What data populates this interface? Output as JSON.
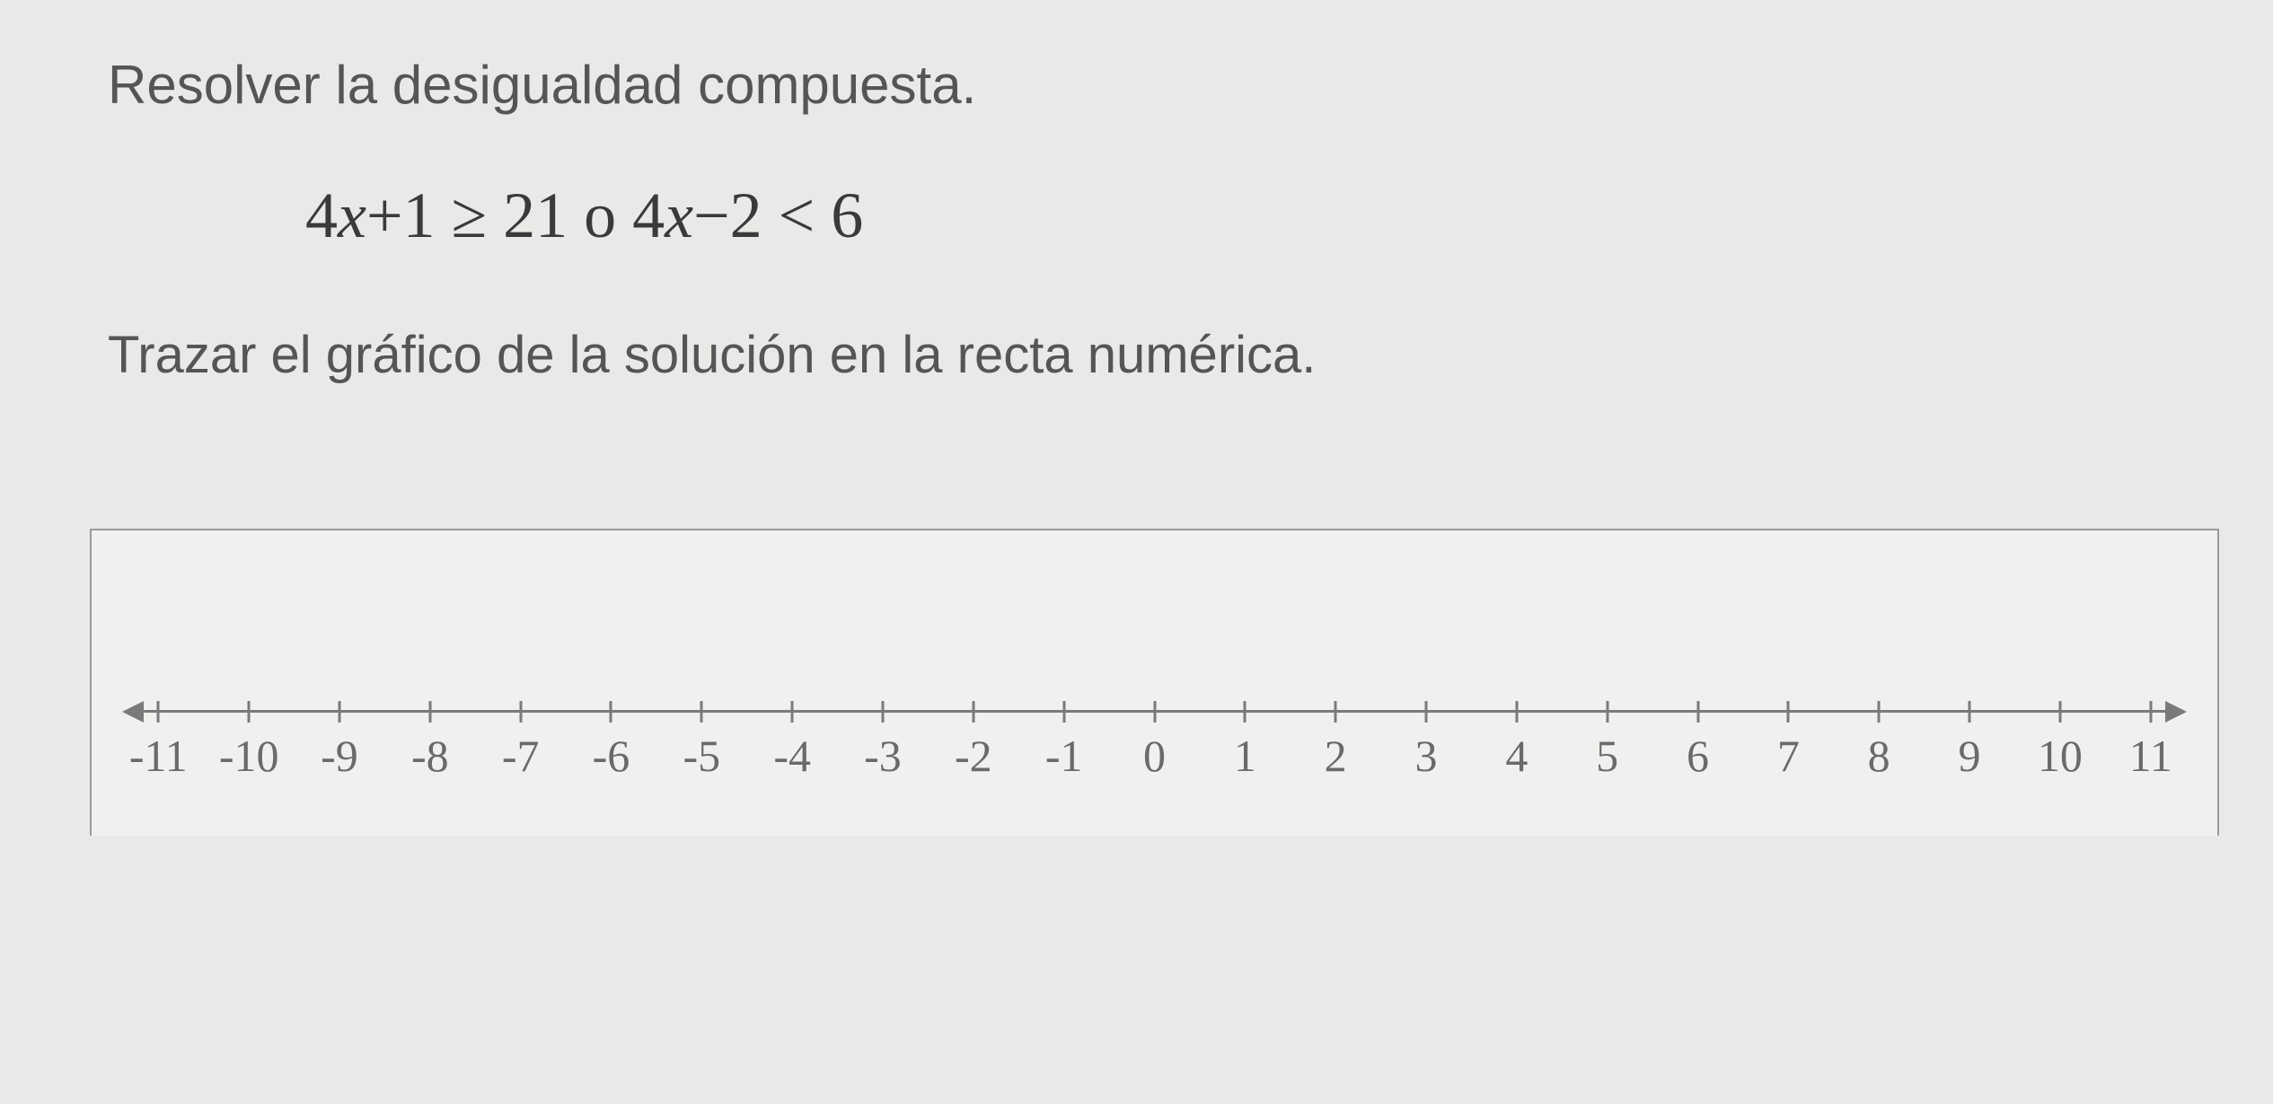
{
  "problem": {
    "prompt": "Resolver la desigualdad compuesta.",
    "inequality_html": "4<i>x</i>+1 ≥ 21 o 4<i>x</i>−2 < 6",
    "instruction": "Trazar el gráfico de la solución en la recta numérica."
  },
  "numberline": {
    "min": -11,
    "max": 11,
    "step": 1,
    "axis_color": "#7a7a7a",
    "label_color": "#6a6a6a",
    "label_fontsize": 50,
    "tick_height": 24,
    "background_color": "#f0f1ee",
    "box_border_color": "#9a9a9a"
  },
  "colors": {
    "page_bg": "#e8eae7",
    "text": "#555555",
    "math_text": "#3a3a3a"
  },
  "typography": {
    "prompt_fontsize": 60,
    "inequality_fontsize": 72,
    "instruction_fontsize": 58
  }
}
